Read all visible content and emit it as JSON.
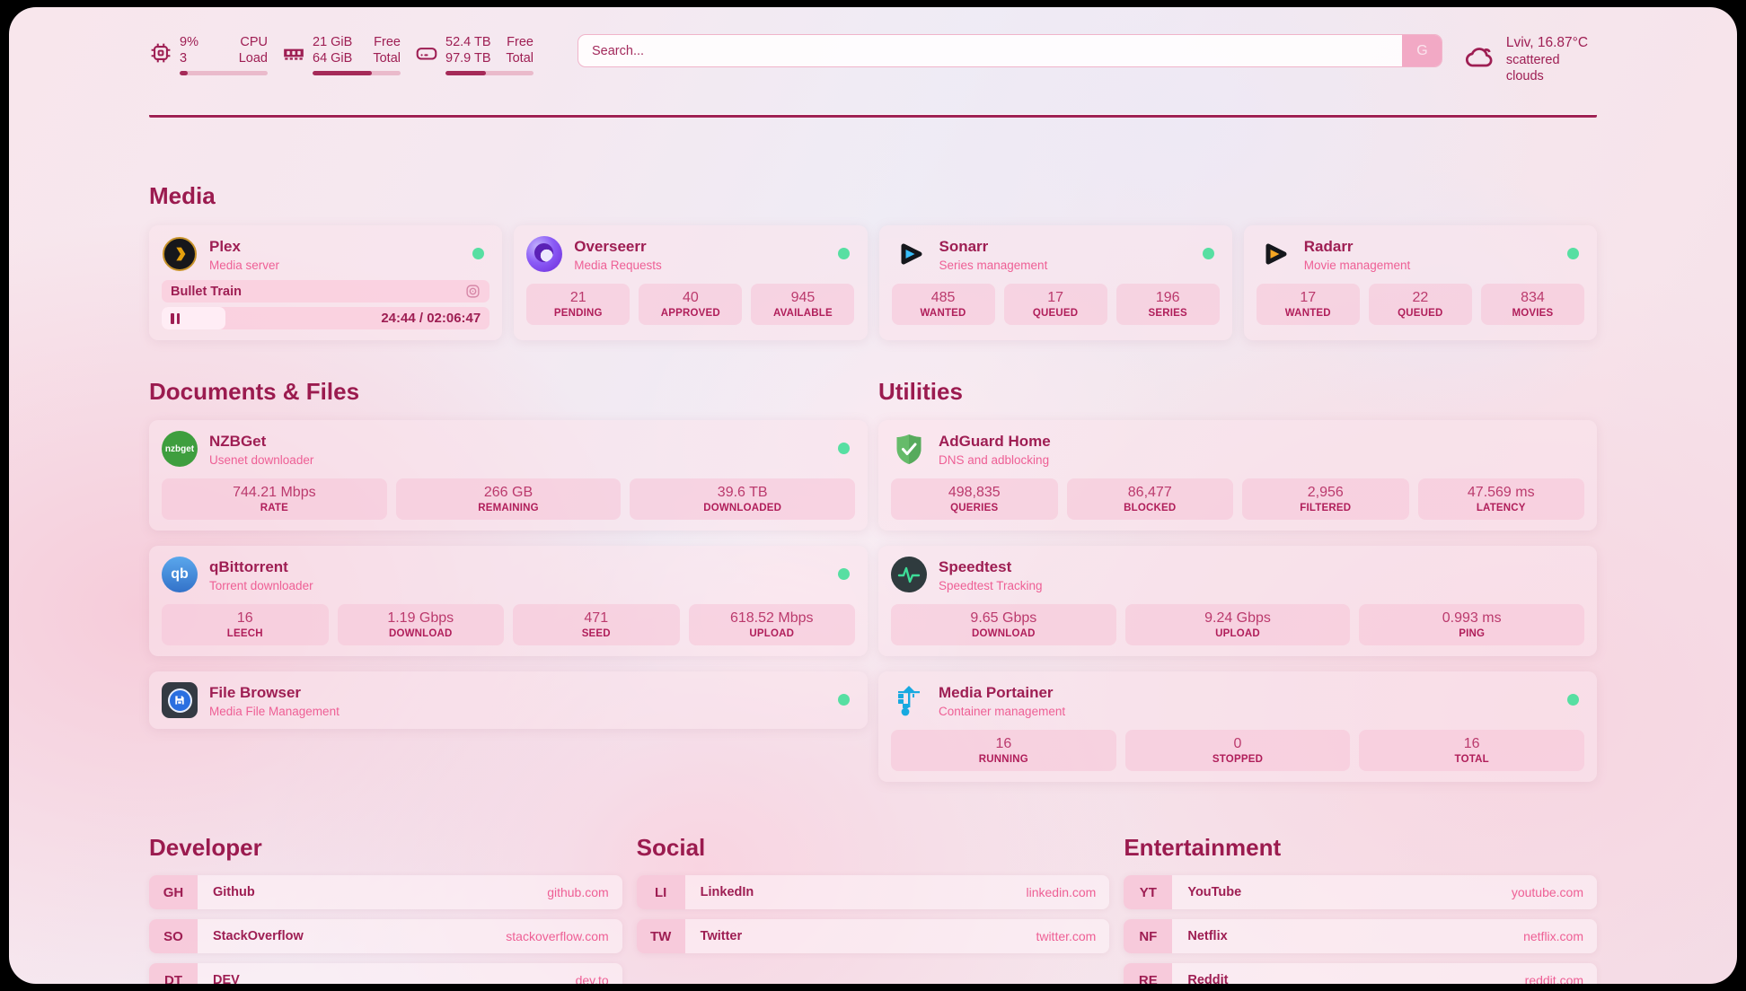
{
  "colors": {
    "accent": "#9e1e53",
    "pink": "#ee5f95",
    "online_dot": "#57dfa2",
    "divider": "#a02355"
  },
  "topbar": {
    "cpu": {
      "icon": "cpu-chip-icon",
      "top_value": "9%",
      "top_label": "CPU",
      "bottom_value": "3",
      "bottom_label": "Load",
      "progress_pct": 9
    },
    "memory": {
      "icon": "ram-icon",
      "top_value": "21 GiB",
      "top_label": "Free",
      "bottom_value": "64 GiB",
      "bottom_label": "Total",
      "progress_pct": 67
    },
    "disk": {
      "icon": "disk-icon",
      "top_value": "52.4 TB",
      "top_label": "Free",
      "bottom_value": "97.9 TB",
      "bottom_label": "Total",
      "progress_pct": 46
    },
    "search": {
      "placeholder": "Search...",
      "button_label": "G"
    },
    "weather": {
      "icon": "cloud-icon",
      "line1": "Lviv, 16.87°C",
      "line2": "scattered clouds"
    }
  },
  "media": {
    "title": "Media",
    "plex": {
      "icon": "plex-icon",
      "name": "Plex",
      "description": "Media server",
      "online": true,
      "now_playing": "Bullet Train",
      "time_display": "24:44 / 02:06:47",
      "progress_pct": 19.5
    },
    "overseerr": {
      "icon": "overseerr-icon",
      "name": "Overseerr",
      "description": "Media Requests",
      "online": true,
      "stats": [
        {
          "value": "21",
          "label": "PENDING"
        },
        {
          "value": "40",
          "label": "APPROVED"
        },
        {
          "value": "945",
          "label": "AVAILABLE"
        }
      ]
    },
    "sonarr": {
      "icon": "sonarr-icon",
      "name": "Sonarr",
      "description": "Series management",
      "online": true,
      "stats": [
        {
          "value": "485",
          "label": "WANTED"
        },
        {
          "value": "17",
          "label": "QUEUED"
        },
        {
          "value": "196",
          "label": "SERIES"
        }
      ]
    },
    "radarr": {
      "icon": "radarr-icon",
      "name": "Radarr",
      "description": "Movie management",
      "online": true,
      "stats": [
        {
          "value": "17",
          "label": "WANTED"
        },
        {
          "value": "22",
          "label": "QUEUED"
        },
        {
          "value": "834",
          "label": "MOVIES"
        }
      ]
    }
  },
  "documents": {
    "title": "Documents & Files",
    "nzbget": {
      "icon": "nzbget-icon",
      "icon_text": "nzbget",
      "name": "NZBGet",
      "description": "Usenet downloader",
      "online": true,
      "stats": [
        {
          "value": "744.21 Mbps",
          "label": "RATE"
        },
        {
          "value": "266 GB",
          "label": "REMAINING"
        },
        {
          "value": "39.6 TB",
          "label": "DOWNLOADED"
        }
      ]
    },
    "qbittorrent": {
      "icon": "qbittorrent-icon",
      "icon_text": "qb",
      "name": "qBittorrent",
      "description": "Torrent downloader",
      "online": true,
      "stats": [
        {
          "value": "16",
          "label": "LEECH"
        },
        {
          "value": "1.19 Gbps",
          "label": "DOWNLOAD"
        },
        {
          "value": "471",
          "label": "SEED"
        },
        {
          "value": "618.52 Mbps",
          "label": "UPLOAD"
        }
      ]
    },
    "filebrowser": {
      "icon": "filebrowser-icon",
      "name": "File Browser",
      "description": "Media File Management",
      "online": true
    }
  },
  "utilities": {
    "title": "Utilities",
    "adguard": {
      "icon": "adguard-shield-icon",
      "name": "AdGuard Home",
      "description": "DNS and adblocking",
      "stats": [
        {
          "value": "498,835",
          "label": "QUERIES"
        },
        {
          "value": "86,477",
          "label": "BLOCKED"
        },
        {
          "value": "2,956",
          "label": "FILTERED"
        },
        {
          "value": "47.569 ms",
          "label": "LATENCY"
        }
      ]
    },
    "speedtest": {
      "icon": "speedtest-pulse-icon",
      "name": "Speedtest",
      "description": "Speedtest Tracking",
      "stats": [
        {
          "value": "9.65 Gbps",
          "label": "DOWNLOAD"
        },
        {
          "value": "9.24 Gbps",
          "label": "UPLOAD"
        },
        {
          "value": "0.993 ms",
          "label": "PING"
        }
      ]
    },
    "portainer": {
      "icon": "portainer-crane-icon",
      "name": "Media Portainer",
      "description": "Container management",
      "online": true,
      "stats": [
        {
          "value": "16",
          "label": "RUNNING"
        },
        {
          "value": "0",
          "label": "STOPPED"
        },
        {
          "value": "16",
          "label": "TOTAL"
        }
      ]
    }
  },
  "bookmarks": {
    "developer": {
      "title": "Developer",
      "items": [
        {
          "abbr": "GH",
          "name": "Github",
          "url": "github.com"
        },
        {
          "abbr": "SO",
          "name": "StackOverflow",
          "url": "stackoverflow.com"
        },
        {
          "abbr": "DT",
          "name": "DEV",
          "url": "dev.to"
        }
      ]
    },
    "social": {
      "title": "Social",
      "items": [
        {
          "abbr": "LI",
          "name": "LinkedIn",
          "url": "linkedin.com"
        },
        {
          "abbr": "TW",
          "name": "Twitter",
          "url": "twitter.com"
        }
      ]
    },
    "entertainment": {
      "title": "Entertainment",
      "items": [
        {
          "abbr": "YT",
          "name": "YouTube",
          "url": "youtube.com"
        },
        {
          "abbr": "NF",
          "name": "Netflix",
          "url": "netflix.com"
        },
        {
          "abbr": "RE",
          "name": "Reddit",
          "url": "reddit.com"
        }
      ]
    }
  }
}
